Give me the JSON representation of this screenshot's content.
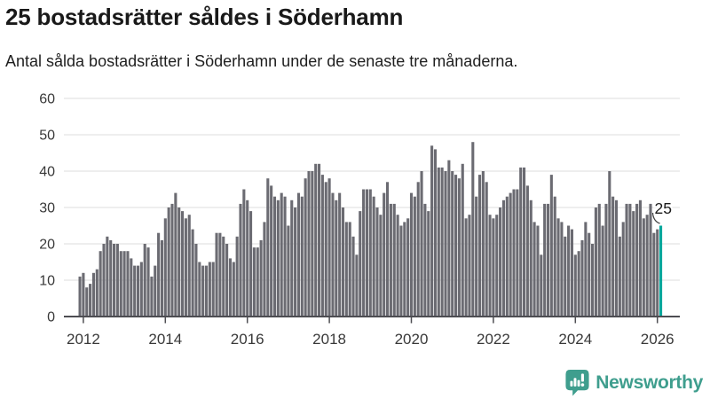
{
  "header": {
    "title": "25 bostadsrätter såldes i Söderhamn",
    "subtitle": "Antal sålda bostadsrätter i Söderhamn under de senaste tre månaderna."
  },
  "chart_data": {
    "type": "bar",
    "title": "25 bostadsrätter såldes i Söderhamn",
    "subtitle": "Antal sålda bostadsrätter i Söderhamn under de senaste tre månaderna.",
    "frequency": "monthly",
    "x_start": "2011-12",
    "x_end": "2026-02",
    "values": [
      11,
      12,
      8,
      9,
      12,
      13,
      18,
      20,
      22,
      21,
      20,
      20,
      18,
      18,
      18,
      16,
      14,
      14,
      15,
      20,
      19,
      11,
      14,
      23,
      21,
      27,
      30,
      31,
      34,
      30,
      29,
      27,
      28,
      24,
      20,
      15,
      14,
      14,
      15,
      15,
      23,
      23,
      22,
      20,
      16,
      15,
      22,
      31,
      35,
      32,
      29,
      19,
      19,
      21,
      26,
      38,
      36,
      33,
      32,
      34,
      33,
      25,
      32,
      30,
      34,
      33,
      38,
      40,
      40,
      42,
      42,
      39,
      37,
      38,
      34,
      32,
      34,
      30,
      26,
      26,
      22,
      17,
      29,
      35,
      35,
      35,
      33,
      30,
      28,
      34,
      37,
      31,
      31,
      28,
      25,
      26,
      27,
      34,
      33,
      37,
      40,
      31,
      29,
      47,
      46,
      41,
      41,
      40,
      43,
      40,
      39,
      38,
      42,
      27,
      28,
      48,
      33,
      39,
      40,
      37,
      28,
      27,
      28,
      30,
      32,
      33,
      34,
      35,
      35,
      41,
      41,
      36,
      32,
      26,
      25,
      17,
      31,
      31,
      39,
      33,
      27,
      26,
      22,
      25,
      24,
      17,
      18,
      21,
      26,
      23,
      20,
      30,
      31,
      25,
      31,
      40,
      33,
      32,
      22,
      26,
      31,
      31,
      29,
      31,
      32,
      27,
      28,
      31,
      23,
      24,
      25
    ],
    "highlight_last_bar": true,
    "annotation": {
      "label": "25"
    },
    "ylim": [
      0,
      60
    ],
    "yticks": [
      0,
      10,
      20,
      30,
      40,
      50,
      60
    ],
    "xtick_years": [
      2012,
      2014,
      2016,
      2018,
      2020,
      2022,
      2024,
      2026
    ],
    "grid": true,
    "legend": "none",
    "colors": {
      "bar": "#6b6b72",
      "highlight": "#00a79c",
      "grid": "#e3e3e3",
      "axis": "#4d4d52",
      "tick_label": "#383838",
      "annotation_text": "#1a1a1a"
    }
  },
  "footer": {
    "brand": "Newsworthy",
    "brand_color": "#3f9e8e"
  }
}
